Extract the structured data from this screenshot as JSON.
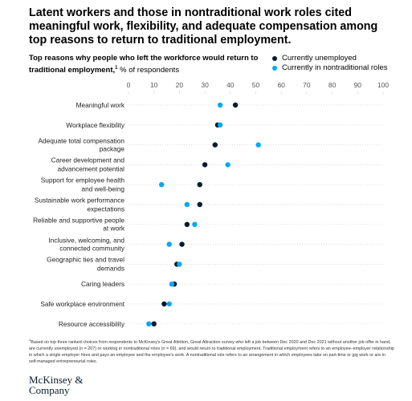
{
  "chart_data": {
    "type": "dot",
    "title": "Latent workers and those in nontraditional work roles cited meaningful work, flexibility, and adequate compensation among top reasons to return to traditional employment.",
    "subtitle": "Top reasons why people who left the workforce would return to traditional employment,",
    "subtitle_footnote_marker": "1",
    "unit_label": "% of respondents",
    "categories": [
      "Meaningful work",
      "Workplace flexibility",
      "Adequate total compensation\npackage",
      "Career development and\nadvancement potential",
      "Support for employee health\nand well-being",
      "Sustainable work performance\nexpectations",
      "Reliable and supportive people\nat work",
      "Inclusive, welcoming, and\nconnected community",
      "Geographic ties and travel\ndemands",
      "Caring leaders",
      "Safe workplace environment",
      "Resource accessibility"
    ],
    "series": [
      {
        "name": "Currently unemployed",
        "color": "#051c2c",
        "values": [
          42,
          35,
          34,
          30,
          28,
          28,
          23,
          21,
          19,
          18,
          14,
          10
        ]
      },
      {
        "name": "Currently in nontraditional roles",
        "color": "#00a9f4",
        "values": [
          36,
          36,
          51,
          39,
          13,
          23,
          26,
          16,
          20,
          17,
          16,
          8
        ]
      }
    ],
    "xlim": [
      0,
      100
    ],
    "xticks": [
      0,
      10,
      20,
      30,
      40,
      50,
      60,
      70,
      80,
      90,
      100
    ],
    "footnote_marker": "1",
    "footnote": "Based on top three ranked choices from respondents to McKinsey's Great Attrition, Great Attraction survey who left a job between Dec 2020 and Dec 2021 without another job offer in hand, are currently unemployed (n = 207) or working in nontraditional roles (n = 69), and would return to traditional employment. Traditional employment refers to an employee–employer relationship in which a single employer hires and pays an employee and the employee's work. A nontraditional role refers to an arrangement in which employees take on part-time or gig work or are in self-managed entrepreneurial roles.",
    "source": "McKinsey & Company"
  }
}
